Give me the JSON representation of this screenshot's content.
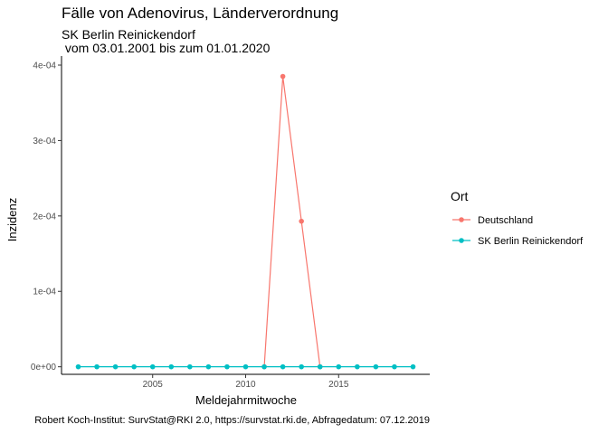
{
  "chart_data": {
    "type": "line",
    "title": "Fälle von Adenovirus, Länderverordnung",
    "subtitle": "SK Berlin Reinickendorf\n vom 03.01.2001 bis zum 01.01.2020",
    "caption": "Robert Koch-Institut: SurvStat@RKI 2.0, https://survstat.rki.de, Abfragedatum: 07.12.2019",
    "xlabel": "Meldejahrmitwoche",
    "ylabel": "Inzidenz",
    "xlim": [
      2000.1,
      2019.9
    ],
    "ylim": [
      -1e-05,
      0.000412
    ],
    "x_ticks": [
      2005,
      2010,
      2015
    ],
    "x_tick_labels": [
      "2005",
      "2010",
      "2015"
    ],
    "y_ticks": [
      0,
      0.0001,
      0.0002,
      0.0003,
      0.0004
    ],
    "y_tick_labels": [
      "0e+00",
      "1e-04",
      "2e-04",
      "3e-04",
      "4e-04"
    ],
    "grid": false,
    "legend": {
      "title": "Ort",
      "position": "right"
    },
    "series": [
      {
        "name": "Deutschland",
        "color": "#F8766D",
        "x": [
          2011,
          2012,
          2013,
          2014
        ],
        "y": [
          0,
          0.000385,
          0.000193,
          0
        ]
      },
      {
        "name": "SK Berlin Reinickendorf",
        "color": "#00BFC4",
        "x": [
          2001,
          2002,
          2003,
          2004,
          2005,
          2006,
          2007,
          2008,
          2009,
          2010,
          2011,
          2012,
          2013,
          2014,
          2015,
          2016,
          2017,
          2018,
          2019
        ],
        "y": [
          0,
          0,
          0,
          0,
          0,
          0,
          0,
          0,
          0,
          0,
          0,
          0,
          0,
          0,
          0,
          0,
          0,
          0,
          0
        ]
      }
    ]
  }
}
